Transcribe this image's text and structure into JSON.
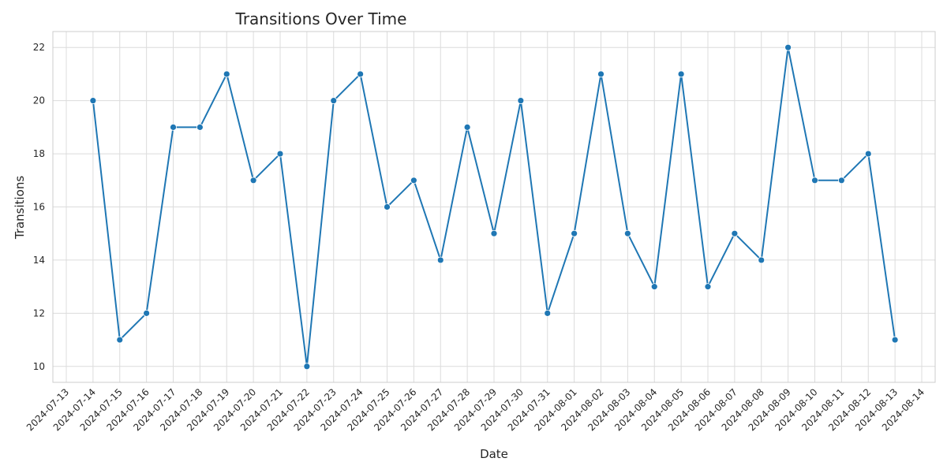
{
  "chart_data": {
    "type": "line",
    "title": "Transitions Over Time",
    "xlabel": "Date",
    "ylabel": "Transitions",
    "x_ticks": [
      "2024-07-13",
      "2024-07-14",
      "2024-07-15",
      "2024-07-16",
      "2024-07-17",
      "2024-07-18",
      "2024-07-19",
      "2024-07-20",
      "2024-07-21",
      "2024-07-22",
      "2024-07-23",
      "2024-07-24",
      "2024-07-25",
      "2024-07-26",
      "2024-07-27",
      "2024-07-28",
      "2024-07-29",
      "2024-07-30",
      "2024-07-31",
      "2024-08-01",
      "2024-08-02",
      "2024-08-03",
      "2024-08-04",
      "2024-08-05",
      "2024-08-06",
      "2024-08-07",
      "2024-08-08",
      "2024-08-09",
      "2024-08-10",
      "2024-08-11",
      "2024-08-12",
      "2024-08-13",
      "2024-08-14"
    ],
    "y_ticks": [
      10,
      12,
      14,
      16,
      18,
      20,
      22
    ],
    "ylim": [
      9.4,
      22.6
    ],
    "grid": true,
    "line_color": "#1f77b4",
    "series": [
      {
        "x": [
          "2024-07-14",
          "2024-07-15",
          "2024-07-16",
          "2024-07-17",
          "2024-07-18",
          "2024-07-19",
          "2024-07-20",
          "2024-07-21",
          "2024-07-22",
          "2024-07-23",
          "2024-07-24",
          "2024-07-25",
          "2024-07-26",
          "2024-07-27",
          "2024-07-28",
          "2024-07-29",
          "2024-07-30",
          "2024-07-31",
          "2024-08-01",
          "2024-08-02",
          "2024-08-03",
          "2024-08-04",
          "2024-08-05",
          "2024-08-06",
          "2024-08-07",
          "2024-08-08",
          "2024-08-09",
          "2024-08-10",
          "2024-08-11",
          "2024-08-12",
          "2024-08-13"
        ],
        "values": [
          20,
          11,
          12,
          19,
          19,
          21,
          17,
          18,
          10,
          20,
          21,
          16,
          17,
          14,
          19,
          15,
          20,
          12,
          15,
          21,
          15,
          13,
          21,
          13,
          15,
          14,
          22,
          17,
          17,
          18,
          11
        ]
      }
    ]
  }
}
